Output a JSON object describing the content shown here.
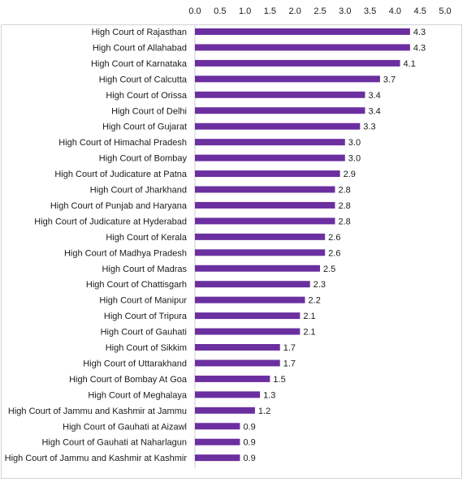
{
  "chart_data": {
    "type": "bar",
    "orientation": "horizontal",
    "title": "",
    "xlabel": "",
    "ylabel": "",
    "xlim": [
      0,
      5
    ],
    "x_ticks": [
      "0.0",
      "0.5",
      "1.0",
      "1.5",
      "2.0",
      "2.5",
      "3.0",
      "3.5",
      "4.0",
      "4.5",
      "5.0"
    ],
    "x_axis_position": "top",
    "grid": false,
    "bar_color": "#6b2fa0",
    "categories": [
      "High Court of Rajasthan",
      "High Court of Allahabad",
      "High Court of Karnataka",
      "High Court of Calcutta",
      "High Court of Orissa",
      "High Court of Delhi",
      "High Court of Gujarat",
      "High Court of Himachal Pradesh",
      "High Court of Bombay",
      "High Court of Judicature at Patna",
      "High Court of Jharkhand",
      "High Court of Punjab and Haryana",
      "High Court of Judicature at Hyderabad",
      "High Court of Kerala",
      "High Court of Madhya Pradesh",
      "High Court of Madras",
      "High Court of Chattisgarh",
      "High Court of Manipur",
      "High Court of Tripura",
      "High Court of Gauhati",
      "High Court of Sikkim",
      "High Court of Uttarakhand",
      "High Court of Bombay At Goa",
      "High Court of Meghalaya",
      "High Court of Jammu and Kashmir at Jammu",
      "High Court of Gauhati at Aizawl",
      "High Court of Gauhati at Naharlagun",
      "High Court of Jammu and Kashmir at Kashmir"
    ],
    "values": [
      4.3,
      4.3,
      4.1,
      3.7,
      3.4,
      3.4,
      3.3,
      3.0,
      3.0,
      2.9,
      2.8,
      2.8,
      2.8,
      2.6,
      2.6,
      2.5,
      2.3,
      2.2,
      2.1,
      2.1,
      1.7,
      1.7,
      1.5,
      1.3,
      1.2,
      0.9,
      0.9,
      0.9
    ],
    "value_labels": [
      "4.3",
      "4.3",
      "4.1",
      "3.7",
      "3.4",
      "3.4",
      "3.3",
      "3.0",
      "3.0",
      "2.9",
      "2.8",
      "2.8",
      "2.8",
      "2.6",
      "2.6",
      "2.5",
      "2.3",
      "2.2",
      "2.1",
      "2.1",
      "1.7",
      "1.7",
      "1.5",
      "1.3",
      "1.2",
      "0.9",
      "0.9",
      "0.9"
    ]
  }
}
